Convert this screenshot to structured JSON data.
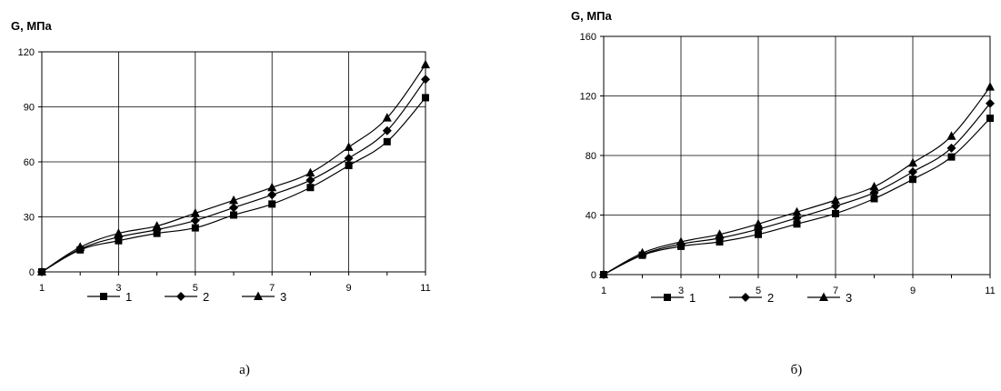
{
  "chart_data": [
    {
      "type": "line",
      "ylabel": "G, МПа",
      "xlabel": "",
      "caption": "а)",
      "x": [
        1,
        2,
        3,
        4,
        5,
        6,
        7,
        8,
        9,
        10,
        11
      ],
      "xticks": [
        "1",
        "3",
        "5",
        "7",
        "9",
        "11"
      ],
      "yticks": [
        "0",
        "30",
        "60",
        "90",
        "120"
      ],
      "xlim": [
        1,
        11
      ],
      "ylim": [
        0,
        120
      ],
      "grid": true,
      "legend_position": "bottom",
      "series": [
        {
          "name": "1",
          "marker": "square",
          "values": [
            0,
            12,
            17,
            21,
            24,
            31,
            37,
            46,
            58,
            71,
            95
          ]
        },
        {
          "name": "2",
          "marker": "diamond",
          "values": [
            0,
            12.5,
            19,
            23,
            28,
            35,
            42,
            50,
            62,
            77,
            105
          ]
        },
        {
          "name": "3",
          "marker": "triangle",
          "values": [
            0,
            13.5,
            21,
            25,
            32,
            39,
            46,
            54,
            68,
            84,
            113
          ]
        }
      ]
    },
    {
      "type": "line",
      "ylabel": "G, МПа",
      "xlabel": "",
      "caption": "б)",
      "x": [
        1,
        2,
        3,
        4,
        5,
        6,
        7,
        8,
        9,
        10,
        11
      ],
      "xticks": [
        "1",
        "3",
        "5",
        "7",
        "9",
        "11"
      ],
      "yticks": [
        "0",
        "40",
        "80",
        "120",
        "160"
      ],
      "xlim": [
        1,
        11
      ],
      "ylim": [
        0,
        160
      ],
      "grid": true,
      "legend_position": "bottom",
      "series": [
        {
          "name": "1",
          "marker": "square",
          "values": [
            0,
            13,
            19,
            22,
            27,
            34,
            41,
            51,
            64,
            79,
            105
          ]
        },
        {
          "name": "2",
          "marker": "diamond",
          "values": [
            0,
            13.5,
            20.5,
            24.5,
            30.5,
            38,
            46,
            55,
            69,
            85,
            115
          ]
        },
        {
          "name": "3",
          "marker": "triangle",
          "values": [
            0,
            14.5,
            22,
            27,
            34,
            42,
            50,
            59,
            75,
            93,
            126
          ]
        }
      ]
    }
  ]
}
